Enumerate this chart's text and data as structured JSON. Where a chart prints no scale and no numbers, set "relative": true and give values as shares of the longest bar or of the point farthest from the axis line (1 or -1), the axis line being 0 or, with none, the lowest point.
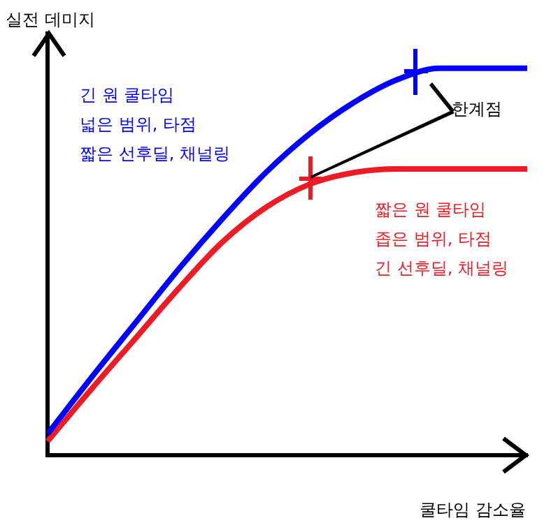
{
  "chart_data": {
    "type": "line",
    "relative": true,
    "xlabel": "쿨타임 감소율",
    "ylabel": "실전 데미지",
    "categories": [
      null,
      null,
      null,
      null,
      null,
      null,
      null,
      null,
      null,
      null,
      null,
      null
    ],
    "series": [
      {
        "color": "#0000ff",
        "values": [
          0.055,
          0.2,
          0.34,
          0.48,
          0.61,
          0.73,
          0.83,
          0.91,
          0.97,
          1,
          1,
          1
        ]
      },
      {
        "color": "#ed1c24",
        "values": [
          0.036,
          0.17,
          0.3,
          0.43,
          0.55,
          0.64,
          0.7,
          0.73,
          0.74,
          0.74,
          0.74,
          0.74
        ]
      }
    ],
    "annotations": [
      "긴 원 쿨타임\n넓은 범위, 타점\n짧은 선후딜, 채널링",
      "짧은 원 쿨타임\n좁은 범위, 타점\n긴 선후딜, 채널링",
      "한계점"
    ],
    "grid": false,
    "legend": false,
    "marker": "none",
    "line_style": "solid"
  }
}
